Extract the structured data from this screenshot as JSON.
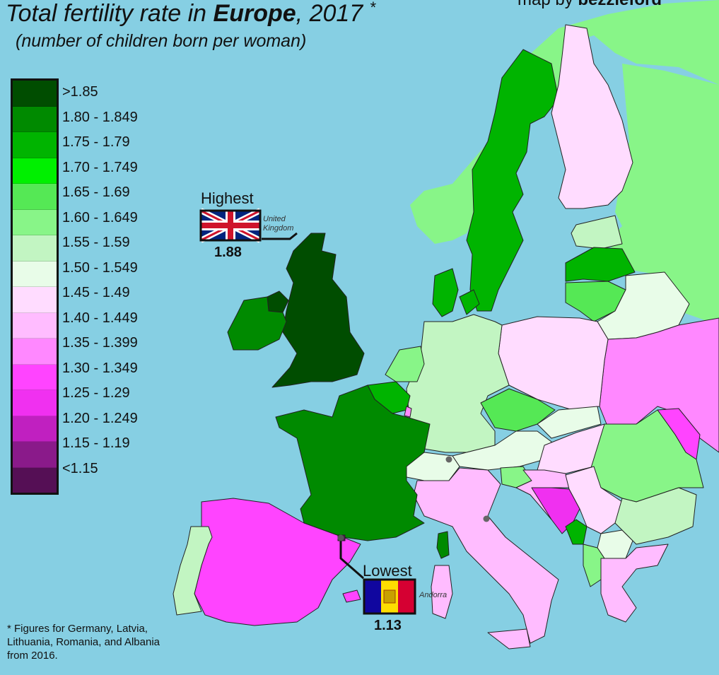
{
  "title": {
    "prefix": "Total fertility rate in ",
    "bold": "Europe",
    "suffix": ", 2017",
    "marker": "*"
  },
  "subtitle": "(number of children born per woman)",
  "credit": {
    "prefix": "map by ",
    "author": "bezzleford"
  },
  "legend": [
    {
      "label": ">1.85",
      "color": "#004d00"
    },
    {
      "label": "1.80 - 1.849",
      "color": "#008a00"
    },
    {
      "label": "1.75 - 1.79",
      "color": "#00b400"
    },
    {
      "label": "1.70 - 1.749",
      "color": "#00f000"
    },
    {
      "label": "1.65 - 1.69",
      "color": "#55e855"
    },
    {
      "label": "1.60 - 1.649",
      "color": "#88f588"
    },
    {
      "label": "1.55 - 1.59",
      "color": "#c2f5c2"
    },
    {
      "label": "1.50 - 1.549",
      "color": "#e8fce8"
    },
    {
      "label": "1.45 - 1.49",
      "color": "#ffdcff"
    },
    {
      "label": "1.40 - 1.449",
      "color": "#ffbcff"
    },
    {
      "label": "1.35 - 1.399",
      "color": "#ff88ff"
    },
    {
      "label": "1.30 - 1.349",
      "color": "#ff44ff"
    },
    {
      "label": "1.25 - 1.29",
      "color": "#f030f0"
    },
    {
      "label": "1.20 - 1.249",
      "color": "#c020c0"
    },
    {
      "label": "1.15 - 1.19",
      "color": "#8a1a8a"
    },
    {
      "label": "<1.15",
      "color": "#550f55"
    }
  ],
  "highest": {
    "label": "Highest",
    "country": "United Kingdom",
    "value": "1.88"
  },
  "lowest": {
    "label": "Lowest",
    "country": "Andorra",
    "value": "1.13"
  },
  "footnote": "* Figures for Germany, Latvia, Lithuania, Romania, and Albania from 2016."
}
